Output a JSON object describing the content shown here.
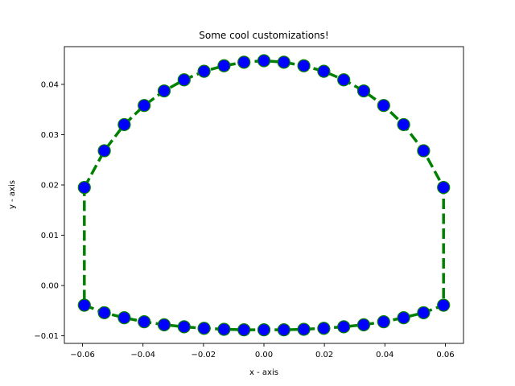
{
  "chart_data": {
    "type": "line",
    "title": "Some cool customizations!",
    "xlabel": "x - axis",
    "ylabel": "y - axis",
    "xlim": [
      -0.066,
      0.066
    ],
    "ylim": [
      -0.0115,
      0.0475
    ],
    "grid": false,
    "legend": "none",
    "x_ticks": [
      -0.06,
      -0.04,
      -0.02,
      0.0,
      0.02,
      0.04,
      0.06
    ],
    "x_tick_labels": [
      "−0.06",
      "−0.04",
      "−0.02",
      "0.00",
      "0.02",
      "0.04",
      "0.06"
    ],
    "y_ticks": [
      -0.01,
      0.0,
      0.01,
      0.02,
      0.03,
      0.04
    ],
    "y_tick_labels": [
      "−0.01",
      "0.00",
      "0.01",
      "0.02",
      "0.03",
      "0.04"
    ],
    "series": [
      {
        "line_color": "#008000",
        "line_style": "dashed",
        "marker": "circle",
        "marker_face_color": "#0000ff",
        "marker_edge_color": "#008000",
        "x": [
          -0.0594,
          -0.0528,
          -0.0462,
          -0.0396,
          -0.033,
          -0.0264,
          -0.0198,
          -0.0132,
          -0.0066,
          0.0,
          0.0066,
          0.0132,
          0.0198,
          0.0264,
          0.033,
          0.0396,
          0.0462,
          0.0528,
          0.0594,
          0.0594,
          0.0528,
          0.0462,
          0.0396,
          0.033,
          0.0264,
          0.0198,
          0.0132,
          0.0066,
          0.0,
          -0.0066,
          -0.0132,
          -0.0198,
          -0.0264,
          -0.033,
          -0.0396,
          -0.0462,
          -0.0528,
          -0.0594,
          -0.0594
        ],
        "y": [
          0.0195,
          0.0268,
          0.032,
          0.0358,
          0.0387,
          0.0409,
          0.0426,
          0.0437,
          0.0444,
          0.0447,
          0.0444,
          0.0437,
          0.0426,
          0.0409,
          0.0387,
          0.0358,
          0.032,
          0.0268,
          0.0195,
          -0.0039,
          -0.0054,
          -0.0064,
          -0.0072,
          -0.0078,
          -0.0082,
          -0.0085,
          -0.0087,
          -0.0088,
          -0.0088,
          -0.0088,
          -0.0087,
          -0.0085,
          -0.0082,
          -0.0078,
          -0.0072,
          -0.0064,
          -0.0054,
          -0.0039,
          0.0195
        ]
      }
    ]
  }
}
